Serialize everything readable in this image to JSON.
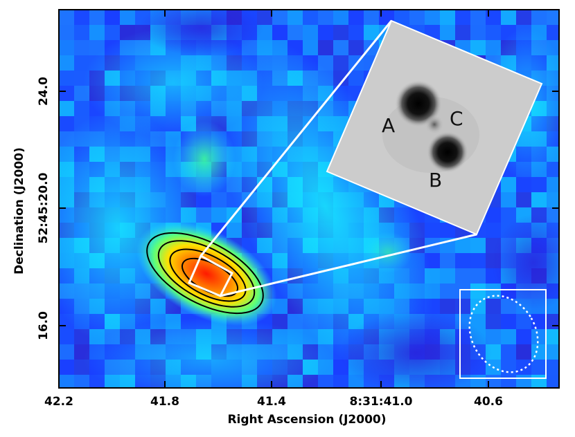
{
  "figure": {
    "xlabel": "Right Ascension (J2000)",
    "ylabel": "Declination (J2000)",
    "x_ticks": [
      "42.2",
      "41.8",
      "41.4",
      "8:31:41.0",
      "40.6"
    ],
    "y_ticks": [
      "24.0",
      "52:45:20.0",
      "16.0"
    ]
  },
  "inset": {
    "labels": [
      "A",
      "B",
      "C"
    ]
  },
  "colors": {
    "background_low": "#1a3cff",
    "background_mid": "#1ec8ff",
    "peak": "#ff1a00",
    "contour": "#000000",
    "overlay": "#ffffff"
  }
}
